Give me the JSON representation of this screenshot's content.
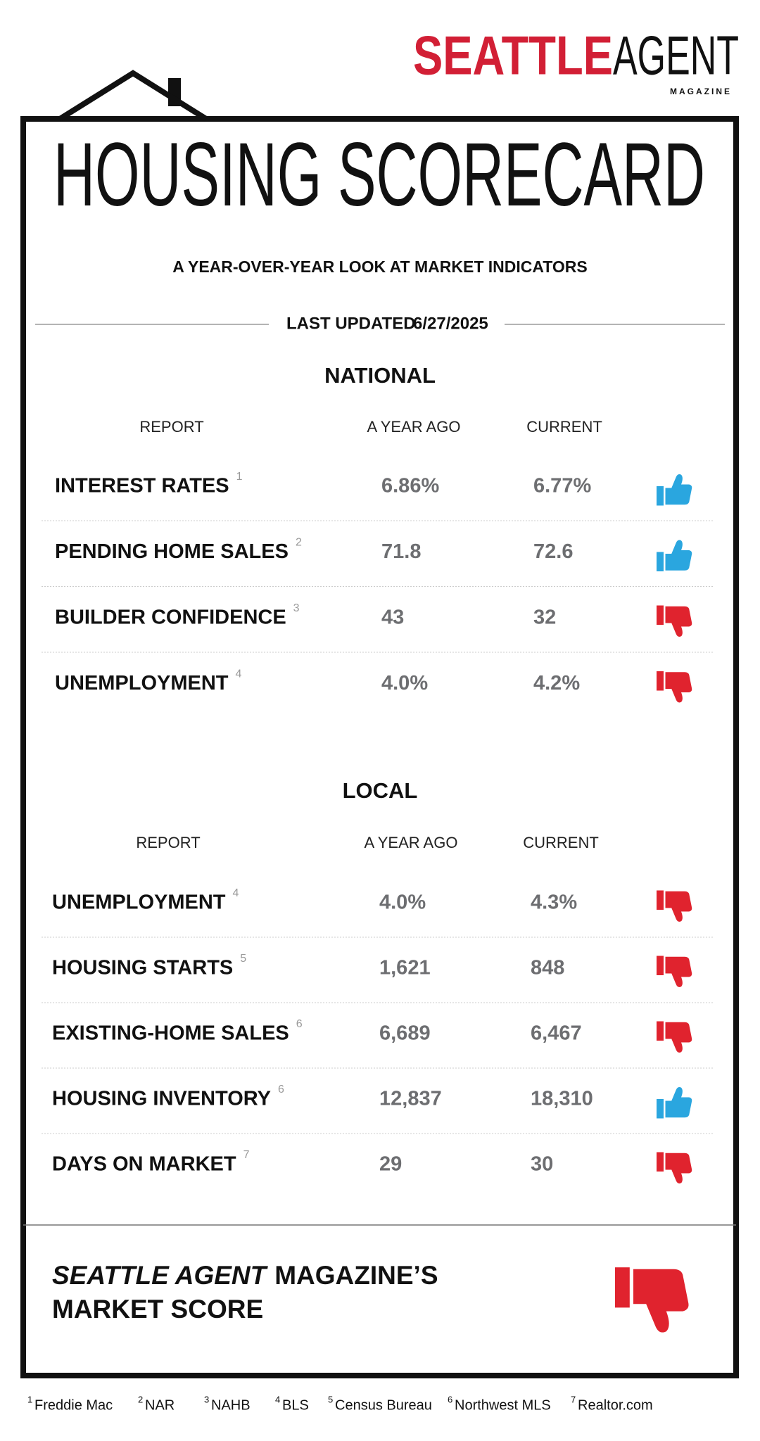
{
  "logo": {
    "seattle": "SEATTLE",
    "agent": "AGENT",
    "magazine": "MAGAZINE"
  },
  "title": "HOUSING SCORECARD",
  "subtitle": "A YEAR-OVER-YEAR LOOK AT MARKET INDICATORS",
  "last_updated": {
    "label": "LAST UPDATED",
    "date": "6/27/2025"
  },
  "sections": [
    {
      "title": "NATIONAL",
      "columns": [
        "REPORT",
        "A YEAR AGO",
        "CURRENT"
      ],
      "rows": [
        {
          "label": "INTEREST RATES",
          "note": "1",
          "year_ago": "6.86%",
          "current": "6.77%",
          "rating": "up"
        },
        {
          "label": "PENDING HOME SALES",
          "note": "2",
          "year_ago": "71.8",
          "current": "72.6",
          "rating": "up"
        },
        {
          "label": "BUILDER CONFIDENCE",
          "note": "3",
          "year_ago": "43",
          "current": "32",
          "rating": "down"
        },
        {
          "label": "UNEMPLOYMENT",
          "note": "4",
          "year_ago": "4.0%",
          "current": "4.2%",
          "rating": "down"
        }
      ]
    },
    {
      "title": "LOCAL",
      "columns": [
        "REPORT",
        "A YEAR AGO",
        "CURRENT"
      ],
      "rows": [
        {
          "label": "UNEMPLOYMENT",
          "note": "4",
          "year_ago": "4.0%",
          "current": "4.3%",
          "rating": "down"
        },
        {
          "label": "HOUSING STARTS",
          "note": "5",
          "year_ago": "1,621",
          "current": "848",
          "rating": "down"
        },
        {
          "label": "EXISTING-HOME SALES",
          "note": "6",
          "year_ago": "6,689",
          "current": "6,467",
          "rating": "down"
        },
        {
          "label": "HOUSING INVENTORY",
          "note": "6",
          "year_ago": "12,837",
          "current": "18,310",
          "rating": "up"
        },
        {
          "label": "DAYS ON MARKET",
          "note": "7",
          "year_ago": "29",
          "current": "30",
          "rating": "down"
        }
      ]
    }
  ],
  "market_score": {
    "name": "SEATTLE AGENT",
    "suffix": "MAGAZINE’S",
    "label": "MARKET SCORE",
    "rating": "down"
  },
  "footnotes": [
    {
      "number": "1",
      "source": "Freddie Mac"
    },
    {
      "number": "2",
      "source": "NAR"
    },
    {
      "number": "3",
      "source": "NAHB"
    },
    {
      "number": "4",
      "source": "BLS"
    },
    {
      "number": "5",
      "source": "Census Bureau"
    },
    {
      "number": "6",
      "source": "Northwest MLS"
    },
    {
      "number": "7",
      "source": "Realtor.com"
    }
  ]
}
